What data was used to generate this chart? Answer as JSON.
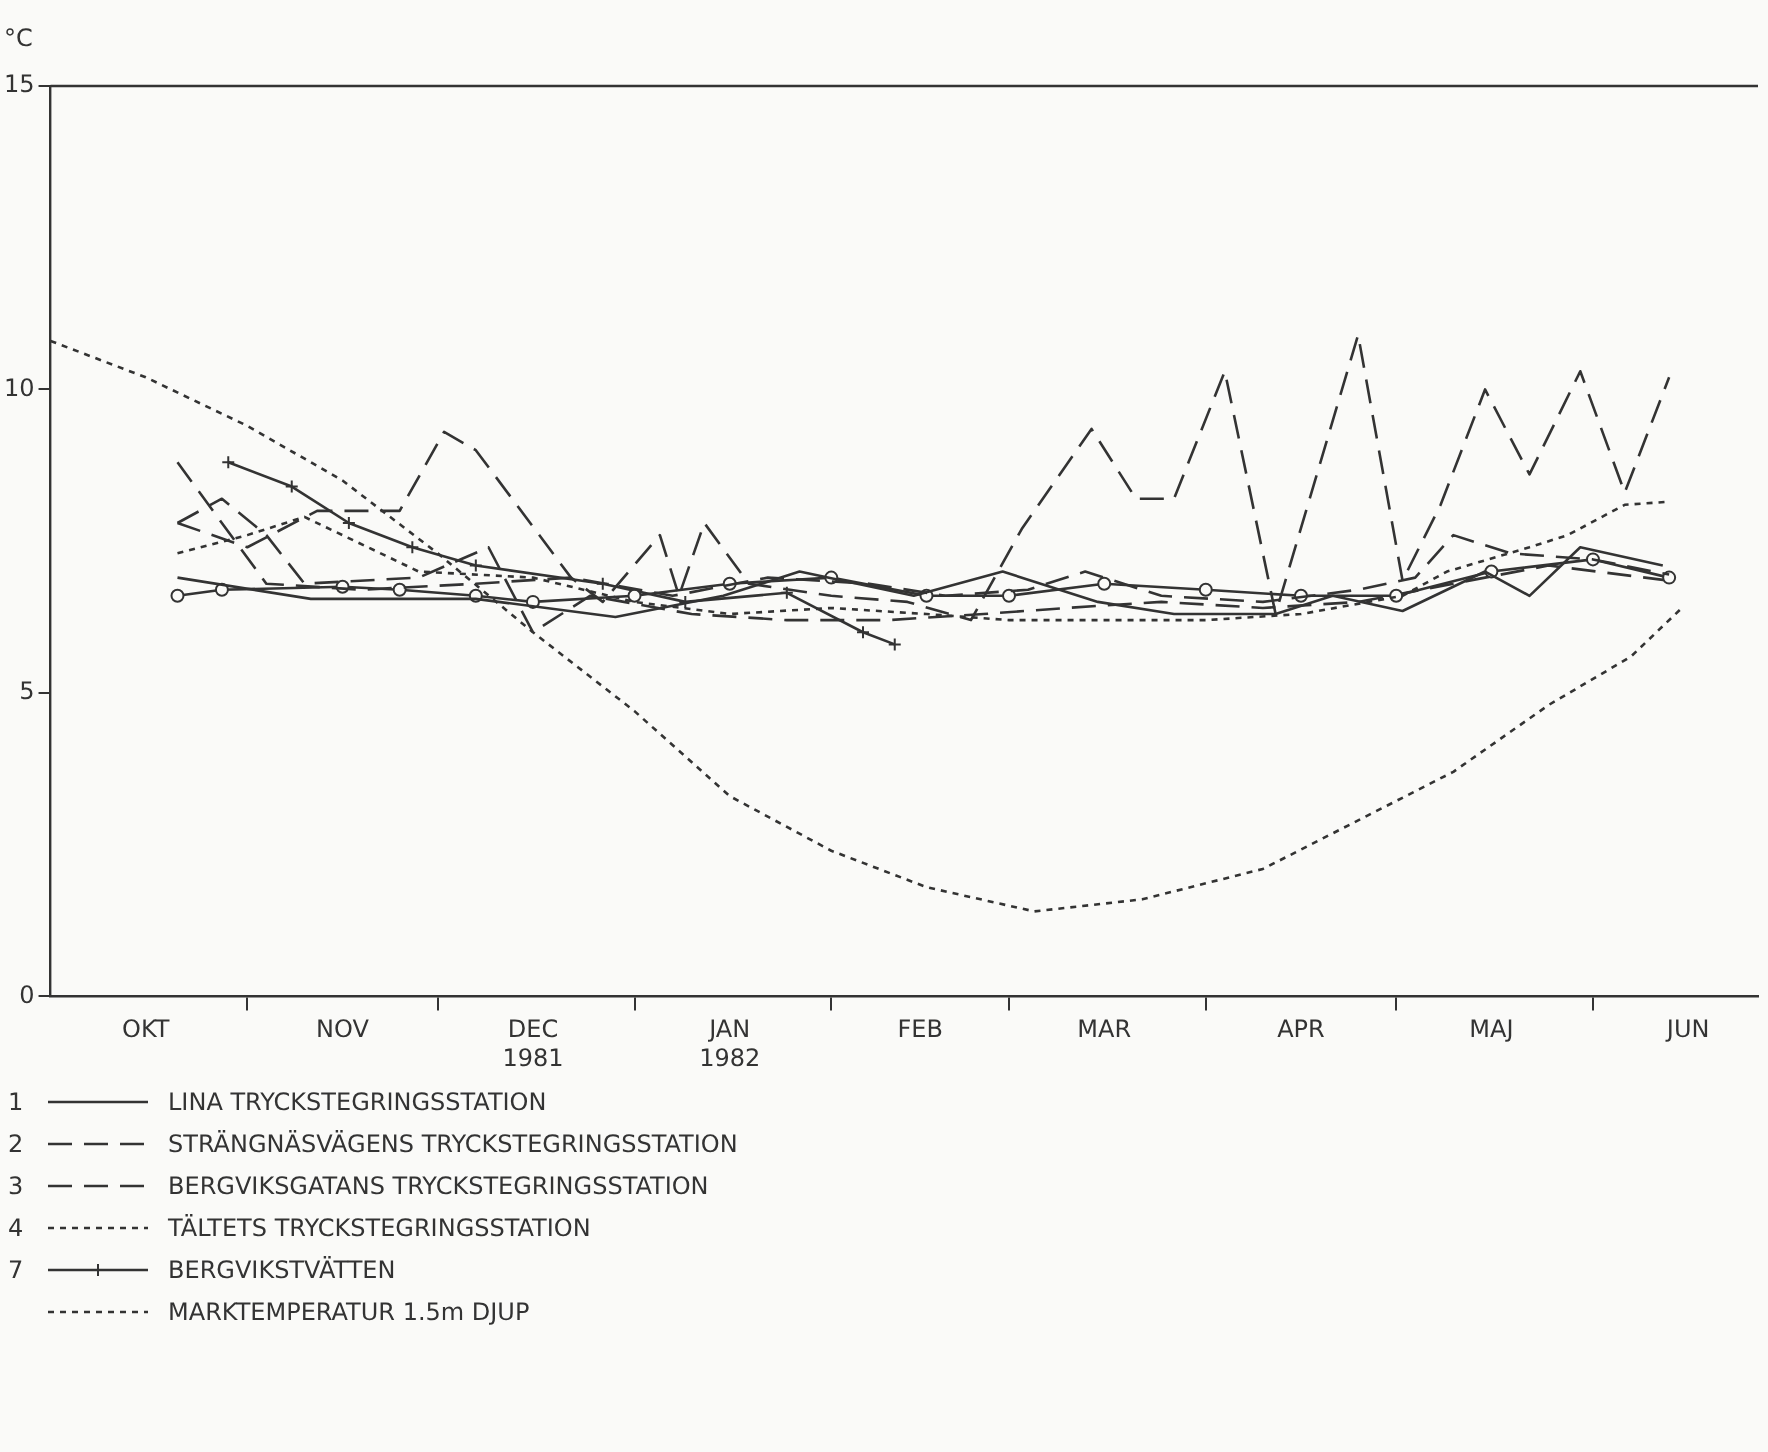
{
  "chart_data": {
    "type": "line",
    "ylabel": "°C",
    "xlim": [
      "1981-10-01",
      "1982-06-27"
    ],
    "ylim": [
      0,
      15
    ],
    "yticks": [
      0,
      5,
      10,
      15
    ],
    "xticks": [
      {
        "value": "1981-11-01",
        "label": null
      },
      {
        "value": "1981-12-01",
        "label": null
      },
      {
        "value": "1982-01-01",
        "label": null
      },
      {
        "value": "1982-02-01",
        "label": null
      },
      {
        "value": "1982-03-01",
        "label": null
      },
      {
        "value": "1982-04-01",
        "label": null
      },
      {
        "value": "1982-05-01",
        "label": null
      },
      {
        "value": "1982-06-01",
        "label": null
      },
      {
        "value": "1981-10-16",
        "label": "OKT"
      },
      {
        "value": "1981-11-16",
        "label": "NOV"
      },
      {
        "value": "1981-12-16",
        "label": "DEC\n1981"
      },
      {
        "value": "1982-01-16",
        "label": "JAN\n1982"
      },
      {
        "value": "1982-02-15",
        "label": "FEB"
      },
      {
        "value": "1982-03-16",
        "label": "MAR"
      },
      {
        "value": "1982-04-16",
        "label": "APR"
      },
      {
        "value": "1982-05-16",
        "label": "MAJ"
      },
      {
        "value": "1982-06-16",
        "label": "JUN"
      }
    ],
    "grid": false,
    "legend": "bottom",
    "marker": "none",
    "series": [
      {
        "name": "1 LINA TRYCKSTEGRINGSSTATION",
        "color": "#333333",
        "line_style": "solid",
        "x": [
          "1981-10-21",
          "1981-11-11",
          "1981-12-07",
          "1981-12-29",
          "1982-01-15",
          "1982-01-27",
          "1982-02-14",
          "1982-02-28",
          "1982-03-15",
          "1982-03-27",
          "1982-04-12",
          "1982-04-21",
          "1982-05-02",
          "1982-05-15",
          "1982-05-22",
          "1982-05-30",
          "1982-06-12"
        ],
        "values": [
          6.9,
          6.55,
          6.55,
          6.25,
          6.6,
          7.0,
          6.6,
          7.0,
          6.5,
          6.3,
          6.3,
          6.6,
          6.35,
          7.0,
          6.6,
          7.4,
          7.1
        ]
      },
      {
        "name": "2 STRÄNGNÄSVÄGENS TRYCKSTEGRINGSSTATION",
        "color": "#333333",
        "line_style": "dashed",
        "x": [
          "1981-10-21",
          "1981-11-04",
          "1981-11-19",
          "1981-12-07",
          "1981-12-22",
          "1982-01-07",
          "1982-01-22",
          "1982-02-07",
          "1982-02-19",
          "1982-03-04",
          "1982-03-13",
          "1982-03-25",
          "1982-04-10",
          "1982-04-25",
          "1982-05-04",
          "1982-05-10",
          "1982-05-19",
          "1982-06-01",
          "1982-06-13"
        ],
        "values": [
          8.8,
          6.8,
          6.7,
          6.8,
          6.9,
          6.6,
          6.9,
          6.8,
          6.6,
          6.7,
          7.0,
          6.6,
          6.5,
          6.7,
          6.9,
          7.6,
          7.3,
          7.2,
          6.95
        ]
      },
      {
        "name": "3 BERGVIKSGATANS TRYCKSTEGRINGSSTATION",
        "color": "#333333",
        "line_style": "dashed",
        "x": [
          "1981-10-21",
          "1981-11-01",
          "1981-11-12",
          "1981-11-25",
          "1981-12-02",
          "1981-12-07",
          "1981-12-22",
          "1981-12-27",
          "1982-01-05",
          "1982-01-08",
          "1982-01-12",
          "1982-01-19",
          "1982-02-01",
          "1982-02-13",
          "1982-02-23",
          "1982-03-03",
          "1982-03-14",
          "1982-03-21",
          "1982-03-27",
          "1982-04-04",
          "1982-04-12",
          "1982-04-25",
          "1982-05-02",
          "1982-05-08",
          "1982-05-15",
          "1982-05-22",
          "1982-05-30",
          "1982-06-06",
          "1982-06-13"
        ],
        "values": [
          7.8,
          7.4,
          8.0,
          8.0,
          9.3,
          9.0,
          6.9,
          6.5,
          7.6,
          6.6,
          7.8,
          6.8,
          6.6,
          6.5,
          6.2,
          7.7,
          9.35,
          8.2,
          8.2,
          10.3,
          6.3,
          10.9,
          6.85,
          8.1,
          10.0,
          8.6,
          10.3,
          8.3,
          10.2
        ]
      },
      {
        "name": "4 TÄLTETS TRYCKSTEGRINGSSTATION",
        "color": "#333333",
        "line_style": "dotted",
        "x": [
          "1981-10-21",
          "1981-11-01",
          "1981-11-10",
          "1981-11-28",
          "1981-12-16",
          "1982-01-01",
          "1982-01-16",
          "1982-02-01",
          "1982-02-16",
          "1982-03-01",
          "1982-03-16",
          "1982-04-01",
          "1982-04-16",
          "1982-05-02",
          "1982-05-09",
          "1982-05-22",
          "1982-05-28",
          "1982-06-06",
          "1982-06-13"
        ],
        "values": [
          7.3,
          7.6,
          7.9,
          7.0,
          6.9,
          6.5,
          6.3,
          6.4,
          6.3,
          6.2,
          6.2,
          6.2,
          6.3,
          6.6,
          7.0,
          7.4,
          7.6,
          8.1,
          8.15
        ]
      },
      {
        "color": "#333333",
        "line_style": "solid",
        "marker": "circle",
        "x": [
          "1981-10-21",
          "1981-10-28",
          "1981-11-16",
          "1981-11-25",
          "1981-12-07",
          "1981-12-16",
          "1982-01-01",
          "1982-01-16",
          "1982-02-01",
          "1982-02-16",
          "1982-03-01",
          "1982-03-16",
          "1982-04-01",
          "1982-04-16",
          "1982-05-01",
          "1982-05-16",
          "1982-06-01",
          "1982-06-13"
        ],
        "values": [
          6.6,
          6.7,
          6.75,
          6.7,
          6.6,
          6.5,
          6.6,
          6.8,
          6.9,
          6.6,
          6.6,
          6.8,
          6.7,
          6.6,
          6.6,
          7.0,
          7.2,
          6.9
        ]
      },
      {
        "color": "#333333",
        "line_style": "dashed",
        "x": [
          "1981-10-21",
          "1981-10-28",
          "1981-11-04",
          "1981-11-10",
          "1981-11-28",
          "1981-12-09",
          "1981-12-16",
          "1981-12-25",
          "1982-01-10",
          "1982-01-25",
          "1982-02-10",
          "1982-02-25",
          "1982-03-10",
          "1982-03-25",
          "1982-04-10",
          "1982-04-25",
          "1982-05-10",
          "1982-05-25",
          "1982-06-13"
        ],
        "values": [
          7.8,
          8.2,
          7.6,
          6.8,
          6.9,
          7.4,
          6.0,
          6.6,
          6.3,
          6.2,
          6.2,
          6.3,
          6.4,
          6.5,
          6.4,
          6.5,
          6.8,
          7.1,
          6.85
        ]
      },
      {
        "name": "7 BERGVIKSTVÄTTEN",
        "color": "#333333",
        "line_style": "solid",
        "marker": "cross",
        "x": [
          "1981-10-29",
          "1981-11-08",
          "1981-11-17",
          "1981-11-27",
          "1981-12-07",
          "1981-12-27",
          "1982-01-09",
          "1982-01-25",
          "1982-02-06",
          "1982-02-11"
        ],
        "values": [
          8.8,
          8.4,
          7.8,
          7.4,
          7.1,
          6.8,
          6.5,
          6.65,
          6.0,
          5.8
        ]
      },
      {
        "name": "MARKTEMPERATUR 1.5m DJUP",
        "color": "#333333",
        "line_style": "dotted",
        "x": [
          "1981-10-01",
          "1981-10-16",
          "1981-11-01",
          "1981-11-16",
          "1981-12-01",
          "1981-12-16",
          "1982-01-01",
          "1982-01-16",
          "1982-02-01",
          "1982-02-16",
          "1982-03-05",
          "1982-03-22",
          "1982-04-10",
          "1982-04-25",
          "1982-05-10",
          "1982-05-25",
          "1982-06-07",
          "1982-06-15"
        ],
        "values": [
          10.8,
          10.2,
          9.4,
          8.5,
          7.3,
          6.0,
          4.7,
          3.3,
          2.4,
          1.8,
          1.4,
          1.6,
          2.1,
          2.9,
          3.7,
          4.8,
          5.6,
          6.4
        ]
      }
    ]
  }
}
